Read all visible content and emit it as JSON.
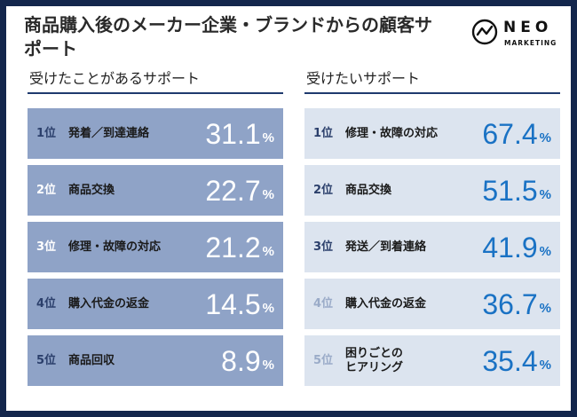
{
  "title": "商品購入後のメーカー企業・ブランドからの顧客サポート",
  "logo": {
    "name": "NEO",
    "sub": "MARKETING"
  },
  "colors": {
    "frame": "#13264c",
    "left_row": "#8fa3c7",
    "right_row": "#dce4ef",
    "right_value": "#1a72c4"
  },
  "chart_data": [
    {
      "type": "table",
      "title": "受けたことがあるサポート",
      "unit": "%",
      "rows": [
        {
          "rank": "1位",
          "label": "発着／到達連絡",
          "value": "31.1",
          "rank_color": "#2b3f6b"
        },
        {
          "rank": "2位",
          "label": "商品交換",
          "value": "22.7",
          "rank_color": "#ffffff"
        },
        {
          "rank": "3位",
          "label": "修理・故障の対応",
          "value": "21.2",
          "rank_color": "#ffffff"
        },
        {
          "rank": "4位",
          "label": "購入代金の返金",
          "value": "14.5",
          "rank_color": "#2b3f6b"
        },
        {
          "rank": "5位",
          "label": "商品回収",
          "value": "8.9",
          "rank_color": "#2b3f6b"
        }
      ]
    },
    {
      "type": "table",
      "title": "受けたいサポート",
      "unit": "%",
      "rows": [
        {
          "rank": "1位",
          "label": "修理・故障の対応",
          "value": "67.4",
          "rank_color": "#2b3f6b"
        },
        {
          "rank": "2位",
          "label": "商品交換",
          "value": "51.5",
          "rank_color": "#2b3f6b"
        },
        {
          "rank": "3位",
          "label": "発送／到着連絡",
          "value": "41.9",
          "rank_color": "#2b3f6b"
        },
        {
          "rank": "4位",
          "label": "購入代金の返金",
          "value": "36.7",
          "rank_color": "#9aabc8"
        },
        {
          "rank": "5位",
          "label": "困りごとのヒアリング",
          "value": "35.4",
          "rank_color": "#9aabc8"
        }
      ]
    }
  ]
}
